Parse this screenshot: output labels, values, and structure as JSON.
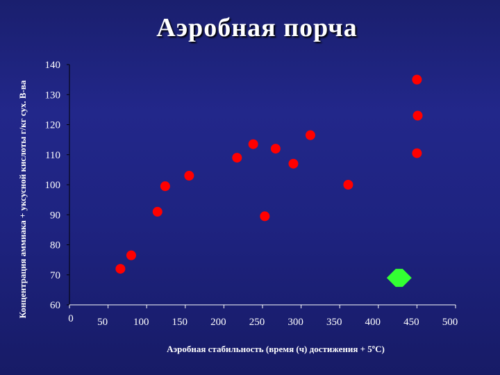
{
  "slide": {
    "title": "Аэробная порча"
  },
  "chart_data": {
    "type": "scatter",
    "title": "Аэробная порча",
    "xlabel": "Аэробная стабильность  (время (ч) достижения + 5ºC)",
    "ylabel": "Концентрация аммиака + уксусной кислоты  г/кг сух. В-ва",
    "xlim": [
      0,
      500
    ],
    "ylim": [
      60,
      140
    ],
    "x_ticks": [
      "0",
      "50",
      "100",
      "150",
      "200",
      "250",
      "300",
      "350",
      "400",
      "450",
      "500"
    ],
    "y_ticks": [
      "60",
      "70",
      "80",
      "90",
      "100",
      "110",
      "120",
      "130",
      "140"
    ],
    "grid": false,
    "series": [
      {
        "color": "#ff0000",
        "marker": "circle",
        "points": [
          {
            "x": 66,
            "y": 72
          },
          {
            "x": 80,
            "y": 76.5
          },
          {
            "x": 114,
            "y": 91
          },
          {
            "x": 124,
            "y": 99.5
          },
          {
            "x": 155,
            "y": 103
          },
          {
            "x": 217,
            "y": 109
          },
          {
            "x": 238,
            "y": 113.5
          },
          {
            "x": 253,
            "y": 89.5
          },
          {
            "x": 267,
            "y": 112
          },
          {
            "x": 290,
            "y": 107
          },
          {
            "x": 312,
            "y": 116.5
          },
          {
            "x": 361,
            "y": 100
          },
          {
            "x": 450,
            "y": 135
          },
          {
            "x": 451,
            "y": 123
          },
          {
            "x": 450,
            "y": 110.5
          }
        ]
      },
      {
        "color": "#33ff33",
        "marker": "diamond",
        "points": [
          {
            "x": 427,
            "y": 69
          }
        ]
      }
    ]
  }
}
